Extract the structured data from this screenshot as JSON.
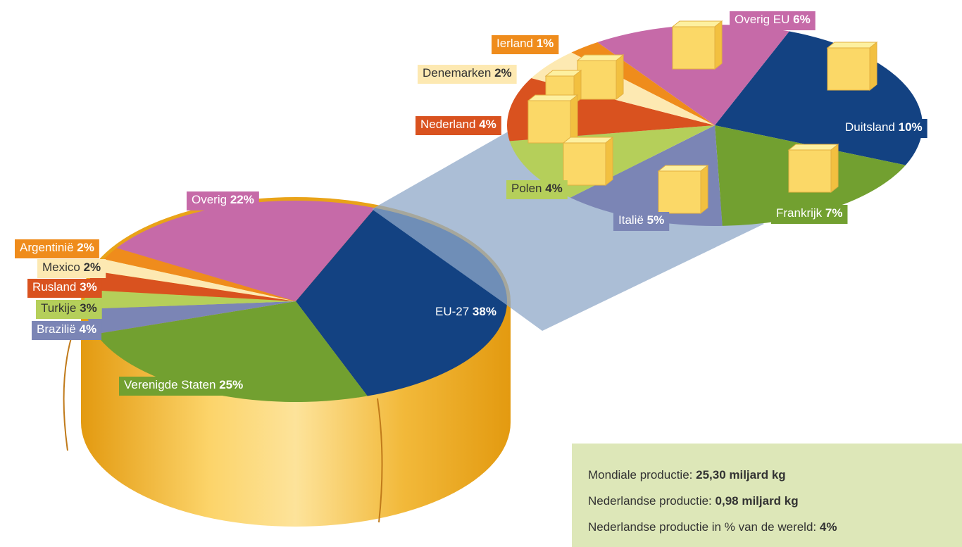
{
  "chart_data": [
    {
      "type": "pie",
      "categories": [
        "EU-27",
        "Verenigde Staten",
        "Brazilië",
        "Turkije",
        "Rusland",
        "Mexico",
        "Argentinië",
        "Overig"
      ],
      "values": [
        38,
        25,
        4,
        3,
        3,
        2,
        2,
        22
      ],
      "value_labels": [
        "38%",
        "25%",
        "4%",
        "3%",
        "3%",
        "2%",
        "2%",
        "22%"
      ],
      "colors": [
        "#134282",
        "#72a030",
        "#7b85b5",
        "#b5cf5a",
        "#d9521f",
        "#fde9b2",
        "#ef8c1c",
        "#c66aa8"
      ]
    },
    {
      "type": "pie",
      "categories": [
        "Duitsland",
        "Frankrijk",
        "Italië",
        "Polen",
        "Nederland",
        "Denemarken",
        "Ierland",
        "Overig EU"
      ],
      "values": [
        10,
        7,
        5,
        4,
        4,
        2,
        1,
        6
      ],
      "value_labels": [
        "10%",
        "7%",
        "5%",
        "4%",
        "4%",
        "2%",
        "1%",
        "6%"
      ],
      "colors": [
        "#134282",
        "#72a030",
        "#7b85b5",
        "#b5cf5a",
        "#d9521f",
        "#fde9b2",
        "#ef8c1c",
        "#c66aa8"
      ]
    }
  ],
  "info": {
    "rows": [
      {
        "label": "Mondiale productie:",
        "value": "25,30 miljard kg"
      },
      {
        "label": "Nederlandse productie:",
        "value": "0,98 miljard kg"
      },
      {
        "label": "Nederlandse productie in % van de wereld:",
        "value": "4%"
      }
    ]
  }
}
